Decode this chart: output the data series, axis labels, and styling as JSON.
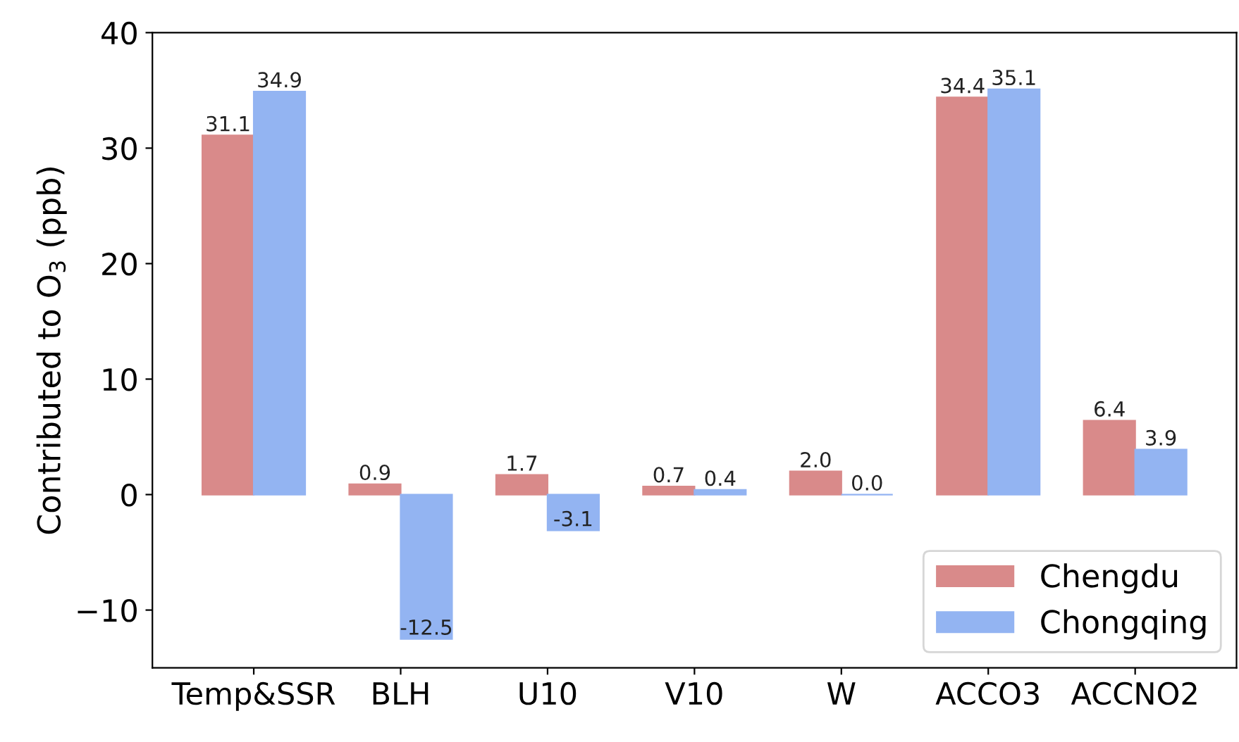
{
  "chart_data": {
    "type": "bar",
    "ylabel": "Contributed to O$_{3}$ (ppb)",
    "categories": [
      "Temp&SSR",
      "BLH",
      "U10",
      "V10",
      "W",
      "ACCO3",
      "ACCNO2"
    ],
    "series": [
      {
        "name": "Chengdu",
        "color": "#d98a8a",
        "values": [
          31.1,
          0.9,
          1.7,
          0.7,
          2.0,
          34.4,
          6.4
        ],
        "value_labels": [
          "31.1",
          "0.9",
          "1.7",
          "0.7",
          "2.0",
          "34.4",
          "6.4"
        ]
      },
      {
        "name": "Chongqing",
        "color": "#93b4f2",
        "values": [
          34.9,
          -12.5,
          -3.1,
          0.4,
          0.0,
          35.1,
          3.9
        ],
        "value_labels": [
          "34.9",
          "-12.5",
          "-3.1",
          "0.4",
          "0.0",
          "35.1",
          "3.9"
        ]
      }
    ],
    "ylim": [
      -15,
      40
    ],
    "yticks": [
      {
        "value": -10,
        "label": "−10"
      },
      0,
      10,
      20,
      30,
      40
    ],
    "legend": "bottom right"
  }
}
